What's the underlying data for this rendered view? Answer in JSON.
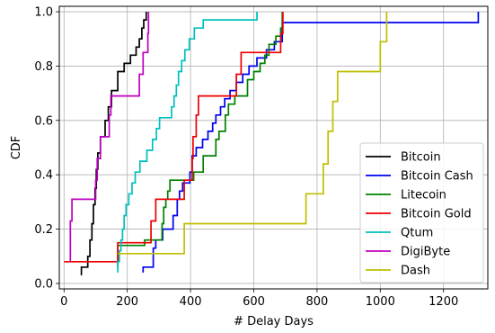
{
  "chart_data": {
    "type": "line",
    "subtype": "step-cdf",
    "xlabel": "# Delay Days",
    "ylabel": "CDF",
    "xlim": [
      -15,
      1340
    ],
    "ylim": [
      -0.02,
      1.02
    ],
    "xticks": [
      "0",
      "200",
      "400",
      "600",
      "800",
      "1000",
      "1200"
    ],
    "yticks": [
      "0.0",
      "0.2",
      "0.4",
      "0.6",
      "0.8",
      "1.0"
    ],
    "xtick_values": [
      0,
      200,
      400,
      600,
      800,
      1000,
      1200
    ],
    "ytick_values": [
      0,
      0.2,
      0.4,
      0.6,
      0.8,
      1.0
    ],
    "grid": true,
    "legend_position": "lower-right",
    "series": [
      {
        "name": "Bitcoin",
        "color": "#000000",
        "points": [
          [
            55,
            0.03
          ],
          [
            55,
            0.06
          ],
          [
            75,
            0.06
          ],
          [
            75,
            0.1
          ],
          [
            82,
            0.1
          ],
          [
            82,
            0.16
          ],
          [
            88,
            0.16
          ],
          [
            88,
            0.22
          ],
          [
            93,
            0.22
          ],
          [
            93,
            0.29
          ],
          [
            98,
            0.29
          ],
          [
            98,
            0.35
          ],
          [
            102,
            0.35
          ],
          [
            102,
            0.42
          ],
          [
            107,
            0.42
          ],
          [
            107,
            0.48
          ],
          [
            115,
            0.48
          ],
          [
            115,
            0.54
          ],
          [
            130,
            0.54
          ],
          [
            130,
            0.6
          ],
          [
            140,
            0.6
          ],
          [
            140,
            0.65
          ],
          [
            150,
            0.65
          ],
          [
            150,
            0.71
          ],
          [
            170,
            0.71
          ],
          [
            170,
            0.78
          ],
          [
            190,
            0.78
          ],
          [
            190,
            0.81
          ],
          [
            210,
            0.81
          ],
          [
            210,
            0.84
          ],
          [
            228,
            0.84
          ],
          [
            228,
            0.87
          ],
          [
            238,
            0.87
          ],
          [
            238,
            0.9
          ],
          [
            246,
            0.9
          ],
          [
            246,
            0.94
          ],
          [
            252,
            0.94
          ],
          [
            252,
            0.97
          ],
          [
            260,
            0.97
          ],
          [
            260,
            1.0
          ]
        ]
      },
      {
        "name": "Bitcoin Cash",
        "color": "#0000ee",
        "points": [
          [
            250,
            0.04
          ],
          [
            250,
            0.06
          ],
          [
            282,
            0.06
          ],
          [
            282,
            0.13
          ],
          [
            290,
            0.13
          ],
          [
            290,
            0.16
          ],
          [
            312,
            0.16
          ],
          [
            312,
            0.2
          ],
          [
            345,
            0.2
          ],
          [
            345,
            0.25
          ],
          [
            358,
            0.25
          ],
          [
            358,
            0.31
          ],
          [
            365,
            0.31
          ],
          [
            365,
            0.34
          ],
          [
            375,
            0.34
          ],
          [
            375,
            0.37
          ],
          [
            398,
            0.37
          ],
          [
            398,
            0.41
          ],
          [
            405,
            0.41
          ],
          [
            405,
            0.47
          ],
          [
            418,
            0.47
          ],
          [
            418,
            0.5
          ],
          [
            438,
            0.5
          ],
          [
            438,
            0.53
          ],
          [
            455,
            0.53
          ],
          [
            455,
            0.56
          ],
          [
            470,
            0.56
          ],
          [
            470,
            0.59
          ],
          [
            480,
            0.59
          ],
          [
            480,
            0.62
          ],
          [
            495,
            0.62
          ],
          [
            495,
            0.65
          ],
          [
            508,
            0.65
          ],
          [
            508,
            0.68
          ],
          [
            525,
            0.68
          ],
          [
            525,
            0.71
          ],
          [
            545,
            0.71
          ],
          [
            545,
            0.74
          ],
          [
            565,
            0.74
          ],
          [
            565,
            0.77
          ],
          [
            585,
            0.77
          ],
          [
            585,
            0.8
          ],
          [
            610,
            0.8
          ],
          [
            610,
            0.83
          ],
          [
            640,
            0.83
          ],
          [
            640,
            0.86
          ],
          [
            665,
            0.86
          ],
          [
            665,
            0.89
          ],
          [
            690,
            0.89
          ],
          [
            690,
            0.96
          ],
          [
            1310,
            0.96
          ],
          [
            1310,
            1.0
          ]
        ]
      },
      {
        "name": "Litecoin",
        "color": "#008000",
        "points": [
          [
            170,
            0.06
          ],
          [
            170,
            0.14
          ],
          [
            255,
            0.14
          ],
          [
            255,
            0.16
          ],
          [
            310,
            0.16
          ],
          [
            310,
            0.22
          ],
          [
            315,
            0.22
          ],
          [
            315,
            0.28
          ],
          [
            322,
            0.28
          ],
          [
            322,
            0.31
          ],
          [
            328,
            0.31
          ],
          [
            328,
            0.34
          ],
          [
            335,
            0.34
          ],
          [
            335,
            0.38
          ],
          [
            410,
            0.38
          ],
          [
            410,
            0.41
          ],
          [
            440,
            0.41
          ],
          [
            440,
            0.47
          ],
          [
            480,
            0.47
          ],
          [
            480,
            0.53
          ],
          [
            490,
            0.53
          ],
          [
            490,
            0.56
          ],
          [
            510,
            0.56
          ],
          [
            510,
            0.62
          ],
          [
            520,
            0.62
          ],
          [
            520,
            0.66
          ],
          [
            540,
            0.66
          ],
          [
            540,
            0.69
          ],
          [
            580,
            0.69
          ],
          [
            580,
            0.75
          ],
          [
            600,
            0.75
          ],
          [
            600,
            0.78
          ],
          [
            620,
            0.78
          ],
          [
            620,
            0.81
          ],
          [
            635,
            0.81
          ],
          [
            635,
            0.84
          ],
          [
            648,
            0.84
          ],
          [
            648,
            0.88
          ],
          [
            670,
            0.88
          ],
          [
            670,
            0.91
          ],
          [
            685,
            0.91
          ],
          [
            685,
            0.94
          ],
          [
            690,
            0.94
          ],
          [
            690,
            1.0
          ]
        ]
      },
      {
        "name": "Bitcoin Gold",
        "color": "#ee0000",
        "points": [
          [
            0,
            0.08
          ],
          [
            170,
            0.08
          ],
          [
            170,
            0.15
          ],
          [
            275,
            0.15
          ],
          [
            275,
            0.23
          ],
          [
            290,
            0.23
          ],
          [
            290,
            0.31
          ],
          [
            380,
            0.31
          ],
          [
            380,
            0.38
          ],
          [
            405,
            0.38
          ],
          [
            405,
            0.46
          ],
          [
            408,
            0.46
          ],
          [
            408,
            0.54
          ],
          [
            418,
            0.54
          ],
          [
            418,
            0.62
          ],
          [
            425,
            0.62
          ],
          [
            425,
            0.69
          ],
          [
            545,
            0.69
          ],
          [
            545,
            0.77
          ],
          [
            560,
            0.77
          ],
          [
            560,
            0.85
          ],
          [
            685,
            0.85
          ],
          [
            685,
            0.92
          ],
          [
            692,
            0.92
          ],
          [
            692,
            1.0
          ]
        ]
      },
      {
        "name": "Qtum",
        "color": "#00bfbf",
        "points": [
          [
            170,
            0.04
          ],
          [
            170,
            0.08
          ],
          [
            175,
            0.08
          ],
          [
            175,
            0.12
          ],
          [
            180,
            0.12
          ],
          [
            180,
            0.16
          ],
          [
            185,
            0.16
          ],
          [
            185,
            0.2
          ],
          [
            190,
            0.2
          ],
          [
            190,
            0.25
          ],
          [
            196,
            0.25
          ],
          [
            196,
            0.29
          ],
          [
            205,
            0.29
          ],
          [
            205,
            0.33
          ],
          [
            215,
            0.33
          ],
          [
            215,
            0.37
          ],
          [
            225,
            0.37
          ],
          [
            225,
            0.41
          ],
          [
            240,
            0.41
          ],
          [
            240,
            0.45
          ],
          [
            262,
            0.45
          ],
          [
            262,
            0.49
          ],
          [
            280,
            0.49
          ],
          [
            280,
            0.53
          ],
          [
            292,
            0.53
          ],
          [
            292,
            0.57
          ],
          [
            302,
            0.57
          ],
          [
            302,
            0.61
          ],
          [
            340,
            0.61
          ],
          [
            340,
            0.65
          ],
          [
            348,
            0.65
          ],
          [
            348,
            0.69
          ],
          [
            355,
            0.69
          ],
          [
            355,
            0.73
          ],
          [
            362,
            0.73
          ],
          [
            362,
            0.78
          ],
          [
            372,
            0.78
          ],
          [
            372,
            0.82
          ],
          [
            382,
            0.82
          ],
          [
            382,
            0.86
          ],
          [
            396,
            0.86
          ],
          [
            396,
            0.9
          ],
          [
            412,
            0.9
          ],
          [
            412,
            0.94
          ],
          [
            440,
            0.94
          ],
          [
            440,
            0.97
          ],
          [
            610,
            0.97
          ],
          [
            610,
            1.0
          ]
        ]
      },
      {
        "name": "DigiByte",
        "color": "#bf00bf",
        "points": [
          [
            20,
            0.08
          ],
          [
            20,
            0.23
          ],
          [
            25,
            0.23
          ],
          [
            25,
            0.31
          ],
          [
            100,
            0.31
          ],
          [
            100,
            0.38
          ],
          [
            105,
            0.38
          ],
          [
            105,
            0.46
          ],
          [
            115,
            0.46
          ],
          [
            115,
            0.54
          ],
          [
            143,
            0.54
          ],
          [
            143,
            0.62
          ],
          [
            148,
            0.62
          ],
          [
            148,
            0.69
          ],
          [
            238,
            0.69
          ],
          [
            238,
            0.77
          ],
          [
            250,
            0.77
          ],
          [
            250,
            0.85
          ],
          [
            265,
            0.85
          ],
          [
            265,
            0.92
          ],
          [
            267,
            0.92
          ],
          [
            267,
            1.0
          ]
        ]
      },
      {
        "name": "Dash",
        "color": "#bfbf00",
        "points": [
          [
            170,
            0.11
          ],
          [
            380,
            0.11
          ],
          [
            380,
            0.22
          ],
          [
            765,
            0.22
          ],
          [
            765,
            0.33
          ],
          [
            820,
            0.33
          ],
          [
            820,
            0.44
          ],
          [
            835,
            0.44
          ],
          [
            835,
            0.56
          ],
          [
            850,
            0.56
          ],
          [
            850,
            0.67
          ],
          [
            865,
            0.67
          ],
          [
            865,
            0.78
          ],
          [
            1000,
            0.78
          ],
          [
            1000,
            0.89
          ],
          [
            1020,
            0.89
          ],
          [
            1020,
            1.0
          ]
        ]
      }
    ]
  }
}
